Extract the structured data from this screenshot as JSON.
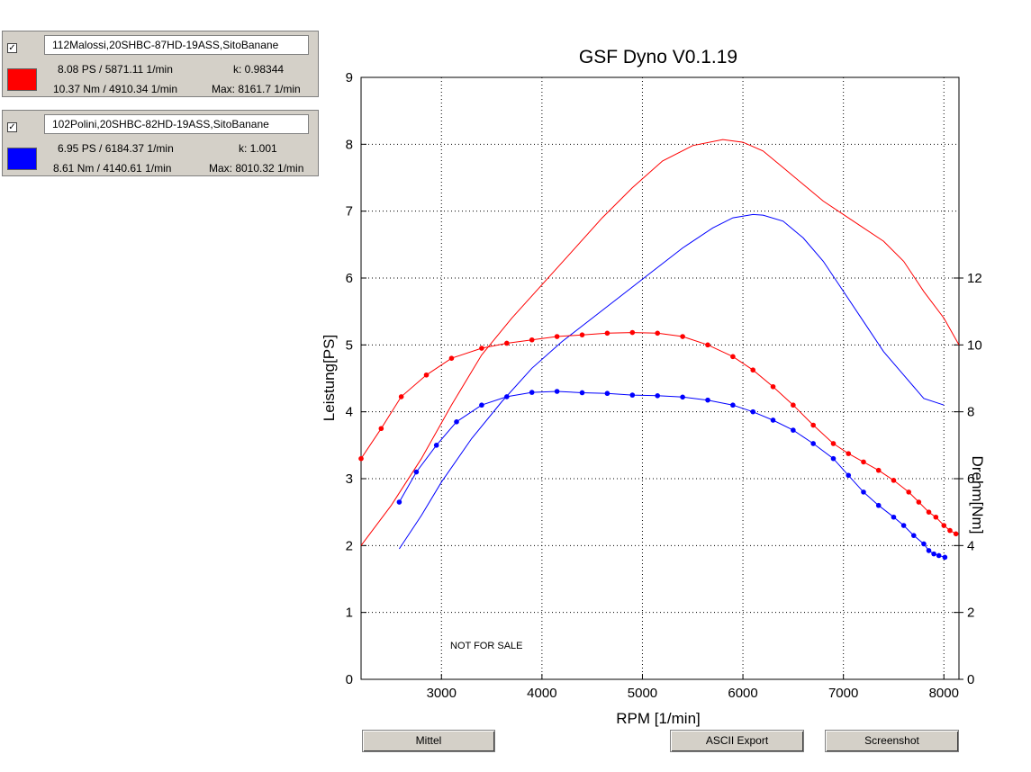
{
  "runs": [
    {
      "checked": "✓",
      "name": "112Malossi,20SHBC-87HD-19ASS,SitoBanane",
      "color": "#ff0000",
      "power": "8.08 PS / 5871.11 1/min",
      "k": "k: 0.98344",
      "torque": "10.37 Nm / 4910.34 1/min",
      "max": "Max: 8161.7 1/min"
    },
    {
      "checked": "✓",
      "name": "102Polini,20SHBC-82HD-19ASS,SitoBanane",
      "color": "#0000ff",
      "power": "6.95 PS / 6184.37 1/min",
      "k": "k: 1.001",
      "torque": "8.61 Nm / 4140.61 1/min",
      "max": "Max: 8010.32 1/min"
    }
  ],
  "buttons": {
    "mittel": "Mittel",
    "ascii_export": "ASCII Export",
    "screenshot": "Screenshot"
  },
  "chart_data": {
    "type": "line",
    "title": "GSF Dyno V0.1.19",
    "xlabel": "RPM [1/min]",
    "ylabel": "Leistung[PS]",
    "y2label": "Drehm[Nm]",
    "annotation": "NOT FOR SALE",
    "xlim": [
      2200,
      8150
    ],
    "ylim": [
      0,
      9
    ],
    "y2lim": [
      0,
      18
    ],
    "xticks": [
      3000,
      4000,
      5000,
      6000,
      7000,
      8000
    ],
    "yticks": [
      0,
      1,
      2,
      3,
      4,
      5,
      6,
      7,
      8,
      9
    ],
    "y2ticks": [
      0,
      2,
      4,
      6,
      8,
      10,
      12
    ],
    "grid": true,
    "series": [
      {
        "kind": "power",
        "axis": "left",
        "color": "#ff0000",
        "markers": false,
        "x": [
          2200,
          2500,
          2800,
          3100,
          3400,
          3700,
          4000,
          4300,
          4600,
          4900,
          5200,
          5500,
          5800,
          6000,
          6200,
          6400,
          6600,
          6800,
          7000,
          7200,
          7400,
          7600,
          7800,
          8000,
          8150
        ],
        "y": [
          2.0,
          2.6,
          3.3,
          4.1,
          4.85,
          5.4,
          5.9,
          6.4,
          6.9,
          7.35,
          7.75,
          7.98,
          8.07,
          8.03,
          7.9,
          7.65,
          7.4,
          7.15,
          6.95,
          6.75,
          6.55,
          6.25,
          5.8,
          5.4,
          5.0
        ]
      },
      {
        "kind": "power",
        "axis": "left",
        "color": "#0000ff",
        "markers": false,
        "x": [
          2580,
          2800,
          3000,
          3300,
          3600,
          3900,
          4200,
          4500,
          4800,
          5100,
          5400,
          5700,
          5900,
          6100,
          6200,
          6400,
          6600,
          6800,
          7000,
          7200,
          7400,
          7600,
          7800,
          8000
        ],
        "y": [
          1.95,
          2.45,
          2.95,
          3.6,
          4.15,
          4.65,
          5.05,
          5.4,
          5.75,
          6.1,
          6.45,
          6.75,
          6.9,
          6.95,
          6.94,
          6.85,
          6.6,
          6.25,
          5.8,
          5.35,
          4.9,
          4.55,
          4.2,
          4.1
        ]
      },
      {
        "kind": "torque",
        "axis": "right",
        "color": "#ff0000",
        "markers": true,
        "x": [
          2200,
          2400,
          2600,
          2850,
          3100,
          3400,
          3650,
          3900,
          4150,
          4400,
          4650,
          4900,
          5150,
          5400,
          5650,
          5900,
          6100,
          6300,
          6500,
          6700,
          6900,
          7050,
          7200,
          7350,
          7500,
          7650,
          7750,
          7850,
          7920,
          8000,
          8060,
          8120
        ],
        "y": [
          6.6,
          7.5,
          8.45,
          9.1,
          9.6,
          9.9,
          10.05,
          10.15,
          10.25,
          10.3,
          10.35,
          10.37,
          10.35,
          10.25,
          10.0,
          9.65,
          9.25,
          8.75,
          8.2,
          7.6,
          7.05,
          6.75,
          6.5,
          6.25,
          5.95,
          5.6,
          5.3,
          5.0,
          4.85,
          4.6,
          4.45,
          4.35
        ]
      },
      {
        "kind": "torque",
        "axis": "right",
        "color": "#0000ff",
        "markers": true,
        "x": [
          2580,
          2750,
          2950,
          3150,
          3400,
          3650,
          3900,
          4150,
          4400,
          4650,
          4900,
          5150,
          5400,
          5650,
          5900,
          6100,
          6300,
          6500,
          6700,
          6900,
          7050,
          7200,
          7350,
          7500,
          7600,
          7700,
          7800,
          7850,
          7900,
          7950,
          8010
        ],
        "y": [
          5.3,
          6.2,
          7.0,
          7.7,
          8.2,
          8.45,
          8.58,
          8.61,
          8.57,
          8.55,
          8.5,
          8.48,
          8.44,
          8.35,
          8.2,
          8.0,
          7.75,
          7.45,
          7.05,
          6.6,
          6.1,
          5.6,
          5.2,
          4.85,
          4.6,
          4.3,
          4.05,
          3.85,
          3.75,
          3.7,
          3.65
        ]
      }
    ]
  }
}
